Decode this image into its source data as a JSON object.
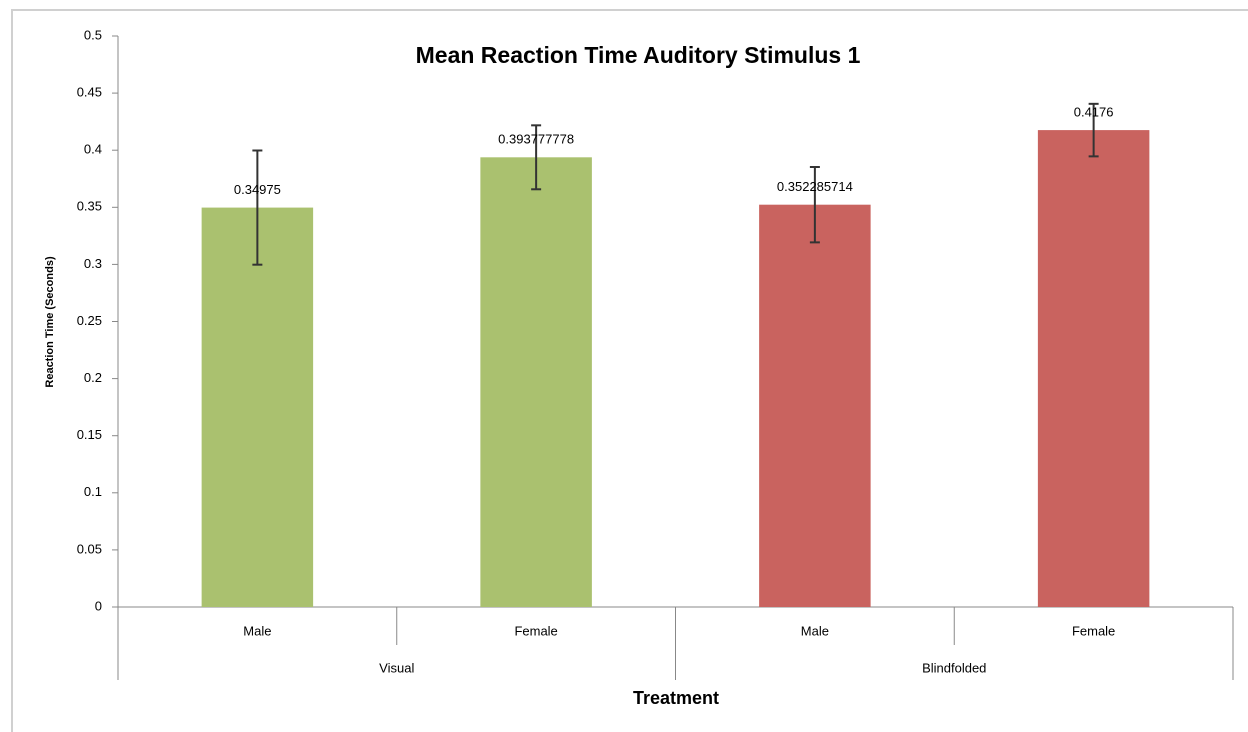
{
  "chart_data": {
    "type": "bar",
    "title": "Mean Reaction Time Auditory Stimulus 1",
    "x_label": "Treatment",
    "y_label": "Reaction Time (Seconds)",
    "ylim": [
      0,
      0.5
    ],
    "yticks": [
      0,
      0.05,
      0.1,
      0.15,
      0.2,
      0.25,
      0.3,
      0.35,
      0.4,
      0.45,
      0.5
    ],
    "groups": [
      {
        "name": "Visual",
        "color": "#aac16f",
        "categories": [
          "Male",
          "Female"
        ],
        "values": [
          0.34975,
          0.393777778
        ],
        "errors": [
          0.05,
          0.028
        ]
      },
      {
        "name": "Blindfolded",
        "color": "#c9635f",
        "categories": [
          "Male",
          "Female"
        ],
        "values": [
          0.352285714,
          0.4176
        ],
        "errors": [
          0.033,
          0.023
        ]
      }
    ]
  }
}
